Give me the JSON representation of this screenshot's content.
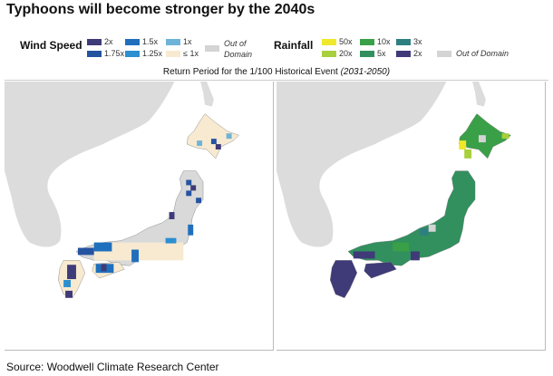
{
  "title": "Typhoons will become stronger by the 2040s",
  "wind": {
    "label": "Wind Speed",
    "items": [
      {
        "label": "2x",
        "color": "#3f3a78"
      },
      {
        "label": "1.75x",
        "color": "#2453a0"
      },
      {
        "label": "1.5x",
        "color": "#1f6fbd"
      },
      {
        "label": "1.25x",
        "color": "#2b8fd0"
      },
      {
        "label": "1x",
        "color": "#6fb3d8"
      },
      {
        "label": "≤ 1x",
        "color": "#f7ead0"
      },
      {
        "label": "Out of Domain",
        "color": "#d4d4d4"
      }
    ]
  },
  "rain": {
    "label": "Rainfall",
    "items": [
      {
        "label": "50x",
        "color": "#f0e82a"
      },
      {
        "label": "20x",
        "color": "#a8cf3c"
      },
      {
        "label": "10x",
        "color": "#3aa048"
      },
      {
        "label": "5x",
        "color": "#31905e"
      },
      {
        "label": "3x",
        "color": "#2e7f80"
      },
      {
        "label": "2x",
        "color": "#3f3a78"
      },
      {
        "label": "Out of Domain",
        "color": "#d4d4d4"
      }
    ]
  },
  "subtitle": {
    "main": "Return Period for the 1/100 Historical Event ",
    "period": "(2031-2050)"
  },
  "source": "Source: Woodwell Climate Research Center"
}
